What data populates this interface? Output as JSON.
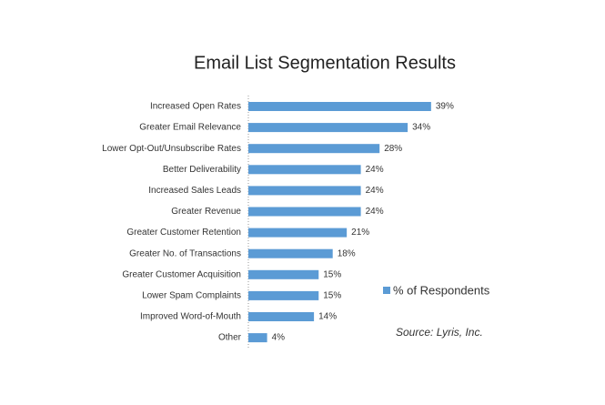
{
  "chart_data": {
    "type": "bar",
    "orientation": "horizontal",
    "title": "Email List Segmentation Results",
    "categories": [
      "Increased Open Rates",
      "Greater Email Relevance",
      "Lower Opt-Out/Unsubscribe Rates",
      "Better Deliverability",
      "Increased Sales Leads",
      "Greater Revenue",
      "Greater Customer Retention",
      "Greater No. of Transactions",
      "Greater Customer Acquisition",
      "Lower Spam Complaints",
      "Improved Word-of-Mouth",
      "Other"
    ],
    "series": [
      {
        "name": "% of Respondents",
        "color": "#5b9bd5",
        "values": [
          39,
          34,
          28,
          24,
          24,
          24,
          21,
          18,
          15,
          15,
          14,
          4
        ],
        "value_labels": [
          "39%",
          "34%",
          "28%",
          "24%",
          "24%",
          "24%",
          "21%",
          "18%",
          "15%",
          "15%",
          "14%",
          "4%"
        ]
      }
    ],
    "annotation": "Source: Lyris, Inc."
  }
}
